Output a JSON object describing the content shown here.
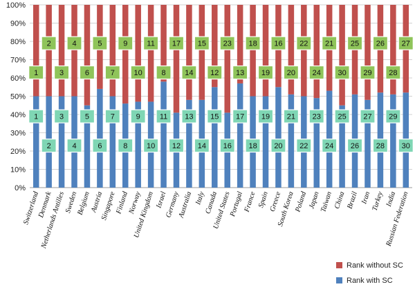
{
  "chart_data": {
    "type": "bar",
    "stacked": true,
    "percent": true,
    "title": "",
    "xlabel": "",
    "ylabel": "",
    "ylim": [
      0,
      100
    ],
    "yticks": [
      "0%",
      "10%",
      "20%",
      "30%",
      "40%",
      "50%",
      "60%",
      "70%",
      "80%",
      "90%",
      "100%"
    ],
    "categories": [
      "Switzerland",
      "Denmark",
      "Netherlands Antilles",
      "Sweden",
      "Belgium",
      "Austria",
      "Singapore",
      "Finland",
      "Norway",
      "United Kingdom",
      "Israel",
      "Germany",
      "Australia",
      "Italy",
      "Canada",
      "United States",
      "Portugal",
      "France",
      "Spain",
      "Greece",
      "South Korea",
      "Poland",
      "Japan",
      "Taiwan",
      "China",
      "Brazil",
      "Iran",
      "Turkey",
      "India",
      "Russian Federation"
    ],
    "series": [
      {
        "name": "Rank with SC",
        "color": "#4f81bd",
        "values": [
          50,
          50,
          50,
          50,
          45,
          54,
          50,
          46,
          47,
          47,
          58,
          41,
          48,
          48,
          55,
          41,
          57,
          50,
          50,
          55,
          51,
          50,
          49,
          53,
          45,
          51,
          48,
          52,
          51,
          52
        ],
        "rank_labels": [
          "1",
          "2",
          "3",
          "4",
          "5",
          "6",
          "7",
          "8",
          "9",
          "10",
          "11",
          "12",
          "13",
          "14",
          "15",
          "16",
          "17",
          "18",
          "19",
          "20",
          "21",
          "22",
          "23",
          "24",
          "25",
          "26",
          "27",
          "28",
          "29",
          "30"
        ]
      },
      {
        "name": "Rank without SC",
        "color": "#c0504d",
        "values": [
          50,
          50,
          50,
          50,
          55,
          46,
          50,
          54,
          53,
          53,
          42,
          59,
          52,
          52,
          45,
          59,
          43,
          50,
          50,
          45,
          49,
          50,
          51,
          47,
          55,
          49,
          52,
          48,
          49,
          48
        ],
        "rank_labels": [
          "1",
          "2",
          "3",
          "4",
          "6",
          "5",
          "7",
          "9",
          "10",
          "11",
          "8",
          "17",
          "14",
          "15",
          "12",
          "23",
          "13",
          "18",
          "19",
          "16",
          "20",
          "22",
          "24",
          "21",
          "30",
          "25",
          "29",
          "26",
          "28",
          "27"
        ]
      }
    ],
    "legend_position": "bottom-right"
  },
  "label_colors": {
    "without_sc_box": "#8fc45a",
    "with_sc_box": "#7fd6b4",
    "box_border": "#ffffff"
  }
}
